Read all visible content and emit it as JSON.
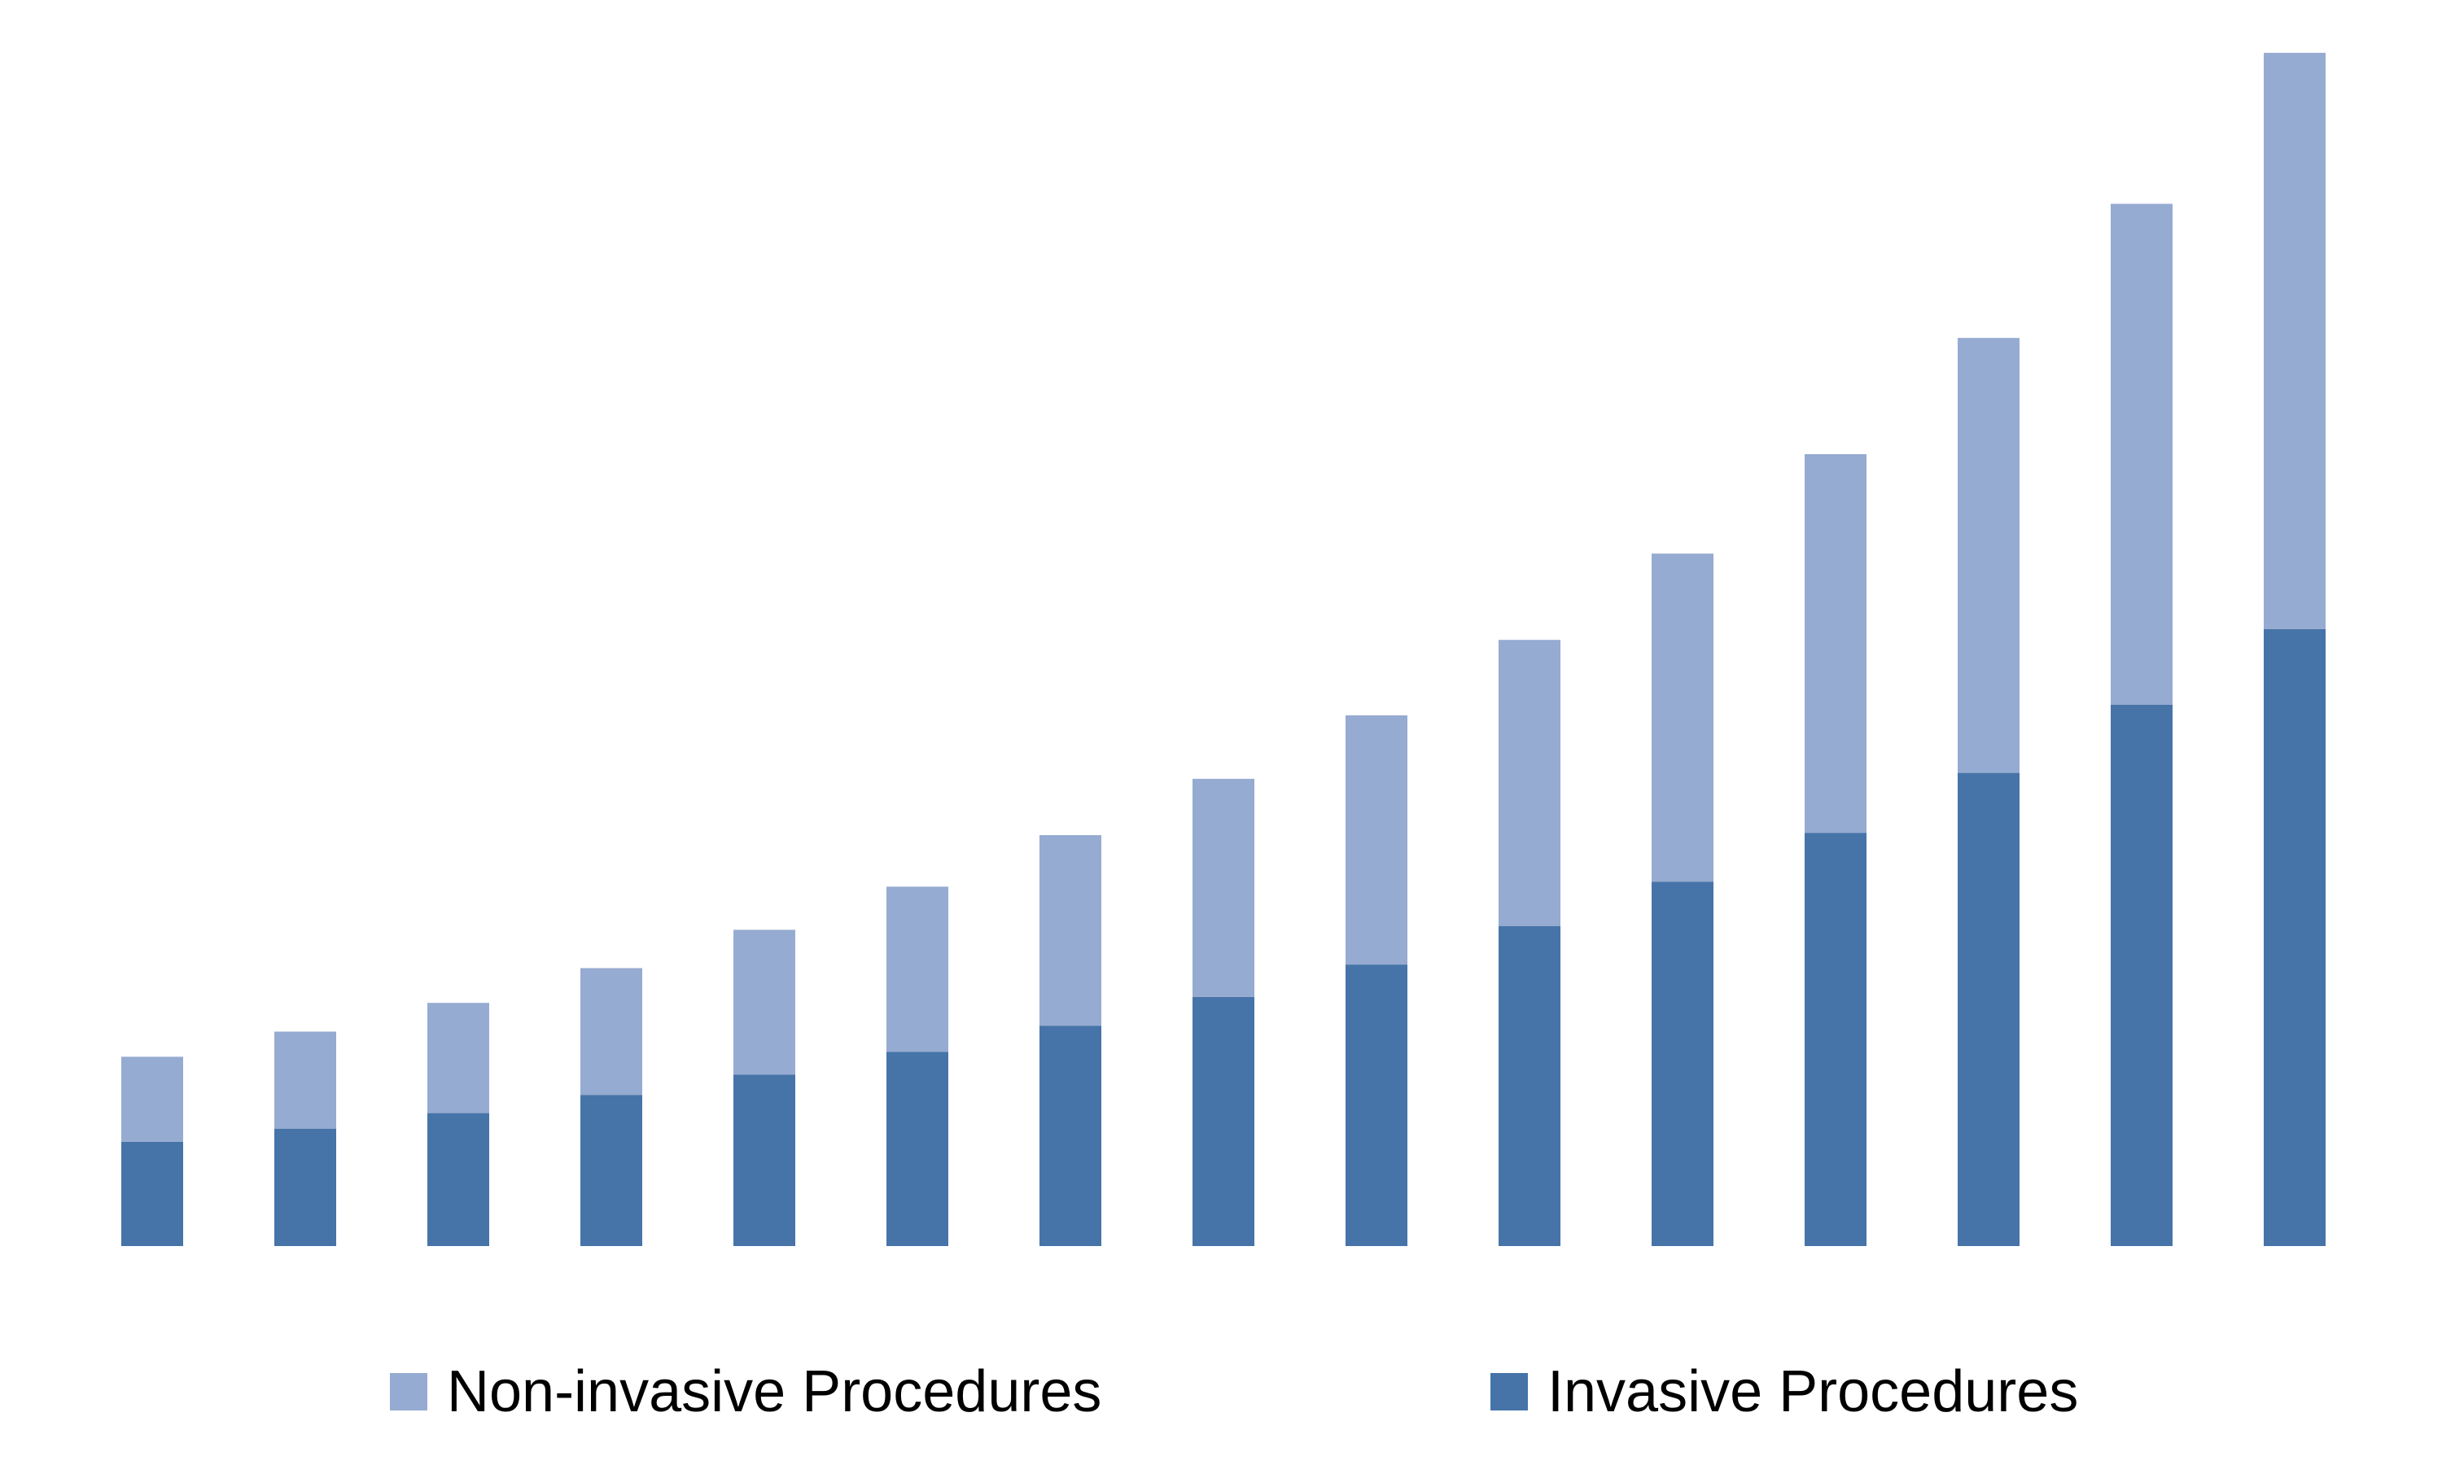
{
  "chart_data": {
    "type": "bar",
    "stacked": true,
    "title": "",
    "xlabel": "",
    "ylabel": "",
    "axes_visible": false,
    "grid": false,
    "legend_position": "bottom",
    "ylim": [
      0,
      100
    ],
    "categories": [
      "",
      "",
      "",
      "",
      "",
      "",
      "",
      "",
      "",
      "",
      "",
      "",
      "",
      "",
      ""
    ],
    "series": [
      {
        "name": "Invasive Procedures",
        "color": "#4674a8",
        "values": [
          8.7,
          9.8,
          11.1,
          12.6,
          14.3,
          16.2,
          18.4,
          20.8,
          23.5,
          26.7,
          30.4,
          34.5,
          39.5,
          45.2,
          51.5
        ]
      },
      {
        "name": "Non-invasive Procedures",
        "color": "#96abd1",
        "values": [
          7.1,
          8.1,
          9.2,
          10.6,
          12.1,
          13.8,
          15.9,
          18.2,
          20.8,
          23.9,
          27.4,
          31.6,
          36.3,
          41.8,
          48.1
        ]
      }
    ]
  },
  "legend": {
    "items": [
      {
        "label": "Non-invasive Procedures",
        "color": "#96abd1"
      },
      {
        "label": "Invasive Procedures",
        "color": "#4674a8"
      }
    ]
  }
}
